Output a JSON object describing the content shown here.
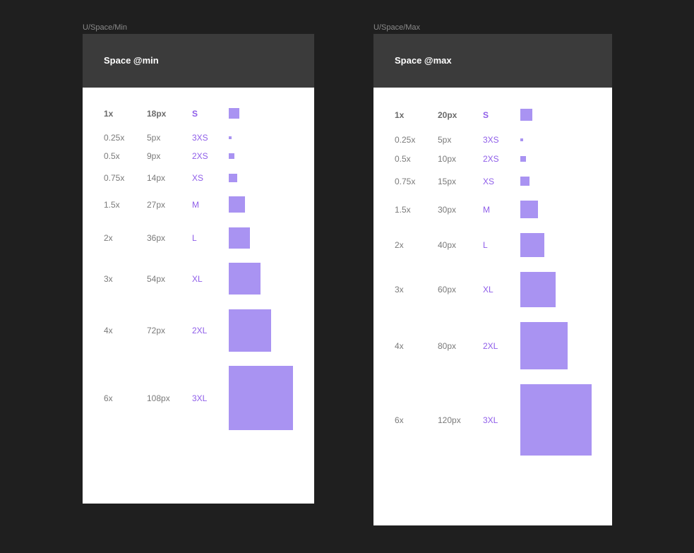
{
  "colors": {
    "canvas": "#1f1f1f",
    "header": "#3b3b3b",
    "token": "#8f5ee9",
    "swatch": "#a993f2"
  },
  "frames": [
    {
      "frame_label": "U/Space/Min",
      "title": "Space @min",
      "rows": [
        {
          "multiplier": "1x",
          "size": "18px",
          "token": "S",
          "value": 18
        },
        {
          "multiplier": "0.25x",
          "size": "5px",
          "token": "3XS",
          "value": 5
        },
        {
          "multiplier": "0.5x",
          "size": "9px",
          "token": "2XS",
          "value": 9
        },
        {
          "multiplier": "0.75x",
          "size": "14px",
          "token": "XS",
          "value": 14
        },
        {
          "multiplier": "1.5x",
          "size": "27px",
          "token": "M",
          "value": 27
        },
        {
          "multiplier": "2x",
          "size": "36px",
          "token": "L",
          "value": 36
        },
        {
          "multiplier": "3x",
          "size": "54px",
          "token": "XL",
          "value": 54
        },
        {
          "multiplier": "4x",
          "size": "72px",
          "token": "2XL",
          "value": 72
        },
        {
          "multiplier": "6x",
          "size": "108px",
          "token": "3XL",
          "value": 108
        }
      ]
    },
    {
      "frame_label": "U/Space/Max",
      "title": "Space @max",
      "rows": [
        {
          "multiplier": "1x",
          "size": "20px",
          "token": "S",
          "value": 20
        },
        {
          "multiplier": "0.25x",
          "size": "5px",
          "token": "3XS",
          "value": 5
        },
        {
          "multiplier": "0.5x",
          "size": "10px",
          "token": "2XS",
          "value": 10
        },
        {
          "multiplier": "0.75x",
          "size": "15px",
          "token": "XS",
          "value": 15
        },
        {
          "multiplier": "1.5x",
          "size": "30px",
          "token": "M",
          "value": 30
        },
        {
          "multiplier": "2x",
          "size": "40px",
          "token": "L",
          "value": 40
        },
        {
          "multiplier": "3x",
          "size": "60px",
          "token": "XL",
          "value": 60
        },
        {
          "multiplier": "4x",
          "size": "80px",
          "token": "2XL",
          "value": 80
        },
        {
          "multiplier": "6x",
          "size": "120px",
          "token": "3XL",
          "value": 120
        }
      ]
    }
  ]
}
